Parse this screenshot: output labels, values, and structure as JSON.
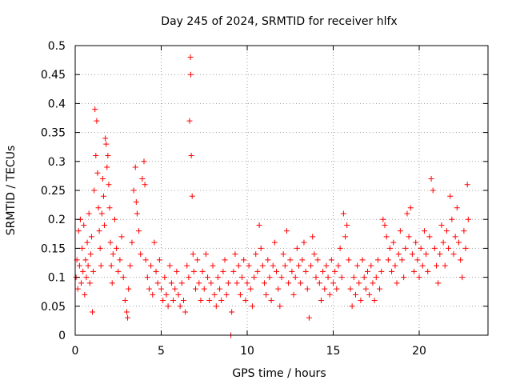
{
  "chart_data": {
    "type": "scatter",
    "title": "Day 245 of 2024, SRMTID for receiver hlfx",
    "xlabel": "GPS time / hours",
    "ylabel": "SRMTID / TECUs",
    "xlim": [
      0,
      24
    ],
    "ylim": [
      0,
      0.5
    ],
    "xticks": [
      0,
      5,
      10,
      15,
      20
    ],
    "yticks": [
      0,
      0.05,
      0.1,
      0.15,
      0.2,
      0.25,
      0.3,
      0.35,
      0.4,
      0.45,
      0.5
    ],
    "xtick_labels": [
      "0",
      "5",
      "10",
      "15",
      "20"
    ],
    "ytick_labels": [
      "0",
      "0.05",
      "0.1",
      "0.15",
      "0.2",
      "0.25",
      "0.3",
      "0.35",
      "0.4",
      "0.45",
      "0.5"
    ],
    "grid": true,
    "marker": "+",
    "color": "#ff0000",
    "series": [
      {
        "name": "SRMTID",
        "points": [
          [
            0.05,
            0.1
          ],
          [
            0.1,
            0.13
          ],
          [
            0.15,
            0.08
          ],
          [
            0.2,
            0.18
          ],
          [
            0.25,
            0.12
          ],
          [
            0.3,
            0.2
          ],
          [
            0.35,
            0.09
          ],
          [
            0.4,
            0.15
          ],
          [
            0.45,
            0.11
          ],
          [
            0.5,
            0.19
          ],
          [
            0.55,
            0.07
          ],
          [
            0.6,
            0.13
          ],
          [
            0.65,
            0.1
          ],
          [
            0.7,
            0.16
          ],
          [
            0.75,
            0.12
          ],
          [
            0.8,
            0.21
          ],
          [
            0.85,
            0.09
          ],
          [
            0.9,
            0.14
          ],
          [
            0.95,
            0.17
          ],
          [
            1.0,
            0.04
          ],
          [
            1.05,
            0.11
          ],
          [
            1.1,
            0.25
          ],
          [
            1.15,
            0.39
          ],
          [
            1.2,
            0.31
          ],
          [
            1.25,
            0.37
          ],
          [
            1.3,
            0.28
          ],
          [
            1.35,
            0.22
          ],
          [
            1.4,
            0.18
          ],
          [
            1.45,
            0.15
          ],
          [
            1.5,
            0.12
          ],
          [
            1.55,
            0.21
          ],
          [
            1.6,
            0.27
          ],
          [
            1.65,
            0.24
          ],
          [
            1.7,
            0.19
          ],
          [
            1.75,
            0.34
          ],
          [
            1.8,
            0.33
          ],
          [
            1.85,
            0.29
          ],
          [
            1.9,
            0.31
          ],
          [
            1.95,
            0.26
          ],
          [
            2.0,
            0.22
          ],
          [
            2.05,
            0.16
          ],
          [
            2.1,
            0.12
          ],
          [
            2.15,
            0.09
          ],
          [
            2.2,
            0.14
          ],
          [
            2.3,
            0.2
          ],
          [
            2.4,
            0.15
          ],
          [
            2.5,
            0.11
          ],
          [
            2.6,
            0.13
          ],
          [
            2.7,
            0.17
          ],
          [
            2.8,
            0.1
          ],
          [
            2.9,
            0.06
          ],
          [
            3.0,
            0.04
          ],
          [
            3.05,
            0.03
          ],
          [
            3.1,
            0.08
          ],
          [
            3.2,
            0.12
          ],
          [
            3.3,
            0.16
          ],
          [
            3.4,
            0.25
          ],
          [
            3.5,
            0.29
          ],
          [
            3.55,
            0.23
          ],
          [
            3.6,
            0.21
          ],
          [
            3.7,
            0.18
          ],
          [
            3.8,
            0.14
          ],
          [
            3.9,
            0.27
          ],
          [
            4.0,
            0.3
          ],
          [
            4.05,
            0.26
          ],
          [
            4.1,
            0.13
          ],
          [
            4.2,
            0.1
          ],
          [
            4.3,
            0.08
          ],
          [
            4.4,
            0.12
          ],
          [
            4.5,
            0.07
          ],
          [
            4.6,
            0.16
          ],
          [
            4.7,
            0.11
          ],
          [
            4.8,
            0.09
          ],
          [
            4.9,
            0.13
          ],
          [
            5.0,
            0.08
          ],
          [
            5.1,
            0.06
          ],
          [
            5.2,
            0.1
          ],
          [
            5.3,
            0.07
          ],
          [
            5.4,
            0.05
          ],
          [
            5.5,
            0.12
          ],
          [
            5.6,
            0.09
          ],
          [
            5.7,
            0.06
          ],
          [
            5.8,
            0.08
          ],
          [
            5.9,
            0.11
          ],
          [
            6.0,
            0.07
          ],
          [
            6.1,
            0.05
          ],
          [
            6.2,
            0.09
          ],
          [
            6.3,
            0.06
          ],
          [
            6.4,
            0.04
          ],
          [
            6.5,
            0.12
          ],
          [
            6.6,
            0.1
          ],
          [
            6.65,
            0.37
          ],
          [
            6.7,
            0.48
          ],
          [
            6.72,
            0.45
          ],
          [
            6.75,
            0.31
          ],
          [
            6.8,
            0.24
          ],
          [
            6.85,
            0.14
          ],
          [
            6.9,
            0.11
          ],
          [
            7.0,
            0.08
          ],
          [
            7.1,
            0.13
          ],
          [
            7.2,
            0.09
          ],
          [
            7.3,
            0.06
          ],
          [
            7.4,
            0.11
          ],
          [
            7.5,
            0.08
          ],
          [
            7.6,
            0.14
          ],
          [
            7.7,
            0.1
          ],
          [
            7.8,
            0.06
          ],
          [
            7.9,
            0.09
          ],
          [
            8.0,
            0.12
          ],
          [
            8.1,
            0.07
          ],
          [
            8.2,
            0.05
          ],
          [
            8.3,
            0.1
          ],
          [
            8.4,
            0.08
          ],
          [
            8.5,
            0.06
          ],
          [
            8.6,
            0.11
          ],
          [
            8.7,
            0.13
          ],
          [
            8.8,
            0.07
          ],
          [
            8.9,
            0.09
          ],
          [
            9.05,
            0.0
          ],
          [
            9.1,
            0.04
          ],
          [
            9.2,
            0.11
          ],
          [
            9.3,
            0.14
          ],
          [
            9.4,
            0.09
          ],
          [
            9.5,
            0.12
          ],
          [
            9.6,
            0.07
          ],
          [
            9.7,
            0.1
          ],
          [
            9.8,
            0.13
          ],
          [
            9.9,
            0.06
          ],
          [
            10.0,
            0.09
          ],
          [
            10.1,
            0.12
          ],
          [
            10.2,
            0.08
          ],
          [
            10.3,
            0.05
          ],
          [
            10.4,
            0.1
          ],
          [
            10.5,
            0.14
          ],
          [
            10.6,
            0.11
          ],
          [
            10.7,
            0.19
          ],
          [
            10.8,
            0.15
          ],
          [
            10.9,
            0.12
          ],
          [
            11.0,
            0.09
          ],
          [
            11.1,
            0.07
          ],
          [
            11.2,
            0.13
          ],
          [
            11.3,
            0.1
          ],
          [
            11.4,
            0.06
          ],
          [
            11.5,
            0.12
          ],
          [
            11.6,
            0.16
          ],
          [
            11.7,
            0.11
          ],
          [
            11.8,
            0.08
          ],
          [
            11.9,
            0.05
          ],
          [
            12.0,
            0.1
          ],
          [
            12.1,
            0.14
          ],
          [
            12.2,
            0.12
          ],
          [
            12.3,
            0.18
          ],
          [
            12.4,
            0.09
          ],
          [
            12.5,
            0.13
          ],
          [
            12.6,
            0.11
          ],
          [
            12.7,
            0.07
          ],
          [
            12.8,
            0.1
          ],
          [
            12.9,
            0.15
          ],
          [
            13.0,
            0.12
          ],
          [
            13.1,
            0.09
          ],
          [
            13.2,
            0.13
          ],
          [
            13.3,
            0.16
          ],
          [
            13.4,
            0.11
          ],
          [
            13.5,
            0.08
          ],
          [
            13.6,
            0.03
          ],
          [
            13.7,
            0.12
          ],
          [
            13.8,
            0.17
          ],
          [
            13.9,
            0.14
          ],
          [
            14.0,
            0.1
          ],
          [
            14.1,
            0.13
          ],
          [
            14.2,
            0.09
          ],
          [
            14.3,
            0.06
          ],
          [
            14.4,
            0.11
          ],
          [
            14.5,
            0.08
          ],
          [
            14.6,
            0.12
          ],
          [
            14.7,
            0.1
          ],
          [
            14.8,
            0.07
          ],
          [
            14.9,
            0.13
          ],
          [
            15.0,
            0.09
          ],
          [
            15.1,
            0.11
          ],
          [
            15.2,
            0.08
          ],
          [
            15.3,
            0.12
          ],
          [
            15.4,
            0.15
          ],
          [
            15.5,
            0.1
          ],
          [
            15.6,
            0.21
          ],
          [
            15.7,
            0.17
          ],
          [
            15.8,
            0.19
          ],
          [
            15.9,
            0.13
          ],
          [
            16.0,
            0.08
          ],
          [
            16.1,
            0.05
          ],
          [
            16.2,
            0.1
          ],
          [
            16.3,
            0.07
          ],
          [
            16.4,
            0.12
          ],
          [
            16.5,
            0.09
          ],
          [
            16.6,
            0.06
          ],
          [
            16.7,
            0.13
          ],
          [
            16.8,
            0.1
          ],
          [
            16.9,
            0.08
          ],
          [
            17.0,
            0.11
          ],
          [
            17.1,
            0.07
          ],
          [
            17.2,
            0.12
          ],
          [
            17.3,
            0.09
          ],
          [
            17.4,
            0.06
          ],
          [
            17.5,
            0.1
          ],
          [
            17.6,
            0.13
          ],
          [
            17.7,
            0.08
          ],
          [
            17.8,
            0.11
          ],
          [
            17.9,
            0.2
          ],
          [
            18.0,
            0.19
          ],
          [
            18.1,
            0.17
          ],
          [
            18.2,
            0.13
          ],
          [
            18.3,
            0.15
          ],
          [
            18.4,
            0.11
          ],
          [
            18.5,
            0.16
          ],
          [
            18.6,
            0.12
          ],
          [
            18.7,
            0.09
          ],
          [
            18.8,
            0.14
          ],
          [
            18.9,
            0.18
          ],
          [
            19.0,
            0.13
          ],
          [
            19.1,
            0.1
          ],
          [
            19.2,
            0.15
          ],
          [
            19.3,
            0.21
          ],
          [
            19.4,
            0.17
          ],
          [
            19.5,
            0.22
          ],
          [
            19.6,
            0.14
          ],
          [
            19.7,
            0.11
          ],
          [
            19.8,
            0.16
          ],
          [
            19.9,
            0.13
          ],
          [
            20.0,
            0.1
          ],
          [
            20.1,
            0.15
          ],
          [
            20.2,
            0.12
          ],
          [
            20.3,
            0.18
          ],
          [
            20.4,
            0.14
          ],
          [
            20.5,
            0.11
          ],
          [
            20.6,
            0.17
          ],
          [
            20.7,
            0.27
          ],
          [
            20.8,
            0.25
          ],
          [
            20.9,
            0.15
          ],
          [
            21.0,
            0.12
          ],
          [
            21.1,
            0.09
          ],
          [
            21.2,
            0.14
          ],
          [
            21.3,
            0.19
          ],
          [
            21.4,
            0.16
          ],
          [
            21.5,
            0.12
          ],
          [
            21.6,
            0.18
          ],
          [
            21.7,
            0.15
          ],
          [
            21.8,
            0.24
          ],
          [
            21.9,
            0.2
          ],
          [
            22.0,
            0.14
          ],
          [
            22.1,
            0.17
          ],
          [
            22.2,
            0.22
          ],
          [
            22.3,
            0.16
          ],
          [
            22.4,
            0.13
          ],
          [
            22.5,
            0.1
          ],
          [
            22.6,
            0.18
          ],
          [
            22.7,
            0.15
          ],
          [
            22.8,
            0.26
          ],
          [
            22.85,
            0.2
          ]
        ]
      }
    ]
  }
}
